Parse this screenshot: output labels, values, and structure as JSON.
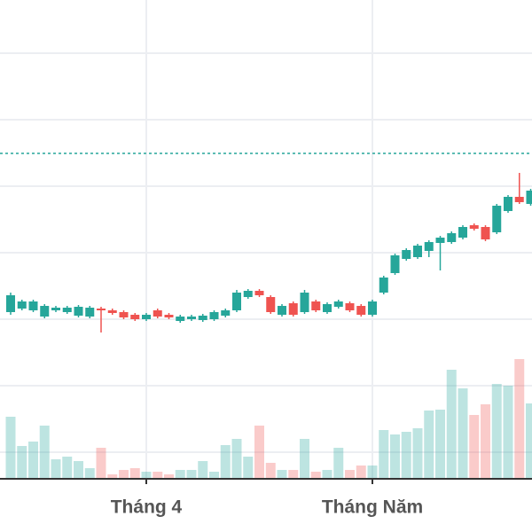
{
  "chart_data": {
    "type": "candlestick",
    "categories": [
      null,
      null,
      null,
      null,
      null,
      null,
      null,
      null,
      null,
      null,
      null,
      null,
      "Tháng 4",
      null,
      null,
      null,
      null,
      null,
      null,
      null,
      null,
      null,
      null,
      null,
      null,
      null,
      null,
      null,
      null,
      null,
      null,
      null,
      "Tháng Năm",
      null,
      null,
      null,
      null,
      null,
      null,
      null,
      null,
      null,
      null,
      null,
      null,
      null,
      null
    ],
    "open": [
      188,
      192,
      190,
      183,
      190,
      188,
      184,
      183,
      192,
      190,
      188,
      185,
      180,
      190,
      185,
      178,
      180,
      179,
      180,
      184,
      190,
      205,
      212,
      205,
      185,
      198,
      188,
      200,
      188,
      194,
      198,
      195,
      185,
      210,
      232,
      248,
      250,
      257,
      266,
      267,
      272,
      286,
      284,
      278,
      302,
      318,
      310
    ],
    "high": [
      210,
      202,
      202,
      197,
      195,
      195,
      196,
      195,
      194,
      192,
      190,
      187,
      187,
      192,
      187,
      185,
      185,
      186,
      190,
      192,
      213,
      214,
      214,
      207,
      197,
      200,
      213,
      202,
      199,
      202,
      200,
      197,
      202,
      229,
      254,
      260,
      265,
      269,
      274,
      279,
      286,
      288,
      286,
      310,
      320,
      345,
      327
    ],
    "low": [
      185,
      190,
      188,
      181,
      188,
      186,
      182,
      181,
      165,
      185,
      180,
      178,
      178,
      181,
      180,
      176,
      178,
      177,
      178,
      182,
      188,
      203,
      205,
      186,
      183,
      183,
      186,
      188,
      186,
      192,
      188,
      183,
      183,
      208,
      230,
      246,
      248,
      250,
      235,
      265,
      270,
      280,
      268,
      276,
      300,
      310,
      308
    ],
    "close": [
      207,
      200,
      200,
      195,
      193,
      193,
      194,
      193,
      190,
      187,
      182,
      180,
      185,
      183,
      182,
      183,
      183,
      184,
      188,
      190,
      210,
      212,
      207,
      188,
      195,
      185,
      210,
      190,
      197,
      200,
      190,
      185,
      200,
      227,
      252,
      258,
      263,
      267,
      272,
      277,
      284,
      282,
      270,
      308,
      318,
      312,
      325
    ],
    "volume": [
      70,
      37,
      42,
      60,
      22,
      25,
      20,
      12,
      35,
      5,
      10,
      12,
      8,
      8,
      5,
      10,
      10,
      20,
      8,
      38,
      45,
      25,
      60,
      18,
      10,
      10,
      45,
      8,
      10,
      35,
      10,
      15,
      15,
      55,
      50,
      53,
      57,
      77,
      78,
      123,
      102,
      72,
      84,
      107,
      105,
      135,
      85
    ],
    "up_color": "#26a69a",
    "down_color": "#ef5350",
    "ylim": [
      0,
      540
    ],
    "yticks": [
      30,
      105,
      180,
      255,
      330,
      405,
      480
    ],
    "y2lim": [
      0,
      540
    ],
    "price_line": 367,
    "grid": true
  }
}
